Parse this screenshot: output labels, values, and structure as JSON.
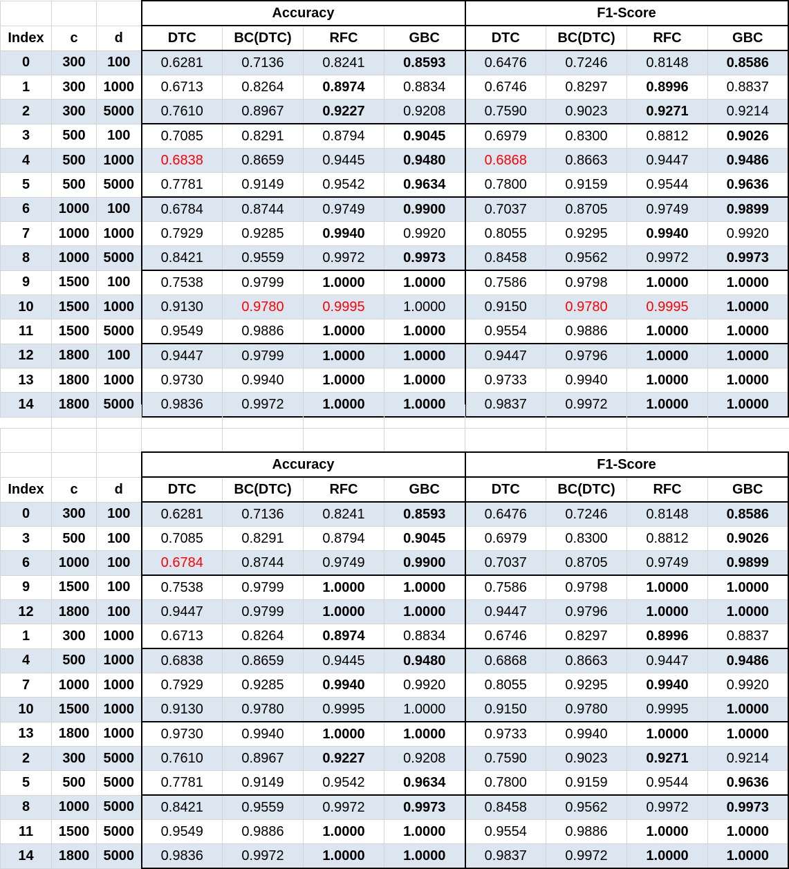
{
  "tables": [
    {
      "group_headers": [
        "Accuracy",
        "F1-Score"
      ],
      "column_headers": [
        "Index",
        "c",
        "d",
        "DTC",
        "BC(DTC)",
        "RFC",
        "GBC",
        "DTC",
        "BC(DTC)",
        "RFC",
        "GBC"
      ],
      "rows": [
        {
          "index": "0",
          "c": "300",
          "d": "100",
          "values": [
            "0.6281",
            "0.7136",
            "0.8241",
            "0.8593",
            "0.6476",
            "0.7246",
            "0.8148",
            "0.8586"
          ],
          "bold": [
            3,
            7
          ],
          "red": []
        },
        {
          "index": "1",
          "c": "300",
          "d": "1000",
          "values": [
            "0.6713",
            "0.8264",
            "0.8974",
            "0.8834",
            "0.6746",
            "0.8297",
            "0.8996",
            "0.8837"
          ],
          "bold": [
            2,
            6
          ],
          "red": []
        },
        {
          "index": "2",
          "c": "300",
          "d": "5000",
          "values": [
            "0.7610",
            "0.8967",
            "0.9227",
            "0.9208",
            "0.7590",
            "0.9023",
            "0.9271",
            "0.9214"
          ],
          "bold": [
            2,
            6
          ],
          "red": []
        },
        {
          "index": "3",
          "c": "500",
          "d": "100",
          "values": [
            "0.7085",
            "0.8291",
            "0.8794",
            "0.9045",
            "0.6979",
            "0.8300",
            "0.8812",
            "0.9026"
          ],
          "bold": [
            3,
            7
          ],
          "red": []
        },
        {
          "index": "4",
          "c": "500",
          "d": "1000",
          "values": [
            "0.6838",
            "0.8659",
            "0.9445",
            "0.9480",
            "0.6868",
            "0.8663",
            "0.9447",
            "0.9486"
          ],
          "bold": [
            3,
            7
          ],
          "red": [
            0,
            4
          ]
        },
        {
          "index": "5",
          "c": "500",
          "d": "5000",
          "values": [
            "0.7781",
            "0.9149",
            "0.9542",
            "0.9634",
            "0.7800",
            "0.9159",
            "0.9544",
            "0.9636"
          ],
          "bold": [
            3,
            7
          ],
          "red": []
        },
        {
          "index": "6",
          "c": "1000",
          "d": "100",
          "values": [
            "0.6784",
            "0.8744",
            "0.9749",
            "0.9900",
            "0.7037",
            "0.8705",
            "0.9749",
            "0.9899"
          ],
          "bold": [
            3,
            7
          ],
          "red": []
        },
        {
          "index": "7",
          "c": "1000",
          "d": "1000",
          "values": [
            "0.7929",
            "0.9285",
            "0.9940",
            "0.9920",
            "0.8055",
            "0.9295",
            "0.9940",
            "0.9920"
          ],
          "bold": [
            2,
            6
          ],
          "red": []
        },
        {
          "index": "8",
          "c": "1000",
          "d": "5000",
          "values": [
            "0.8421",
            "0.9559",
            "0.9972",
            "0.9973",
            "0.8458",
            "0.9562",
            "0.9972",
            "0.9973"
          ],
          "bold": [
            3,
            7
          ],
          "red": []
        },
        {
          "index": "9",
          "c": "1500",
          "d": "100",
          "values": [
            "0.7538",
            "0.9799",
            "1.0000",
            "1.0000",
            "0.7586",
            "0.9798",
            "1.0000",
            "1.0000"
          ],
          "bold": [
            2,
            3,
            6,
            7
          ],
          "red": []
        },
        {
          "index": "10",
          "c": "1500",
          "d": "1000",
          "values": [
            "0.9130",
            "0.9780",
            "0.9995",
            "1.0000",
            "0.9150",
            "0.9780",
            "0.9995",
            "1.0000"
          ],
          "bold": [
            7
          ],
          "red": [
            1,
            2,
            5,
            6
          ]
        },
        {
          "index": "11",
          "c": "1500",
          "d": "5000",
          "values": [
            "0.9549",
            "0.9886",
            "1.0000",
            "1.0000",
            "0.9554",
            "0.9886",
            "1.0000",
            "1.0000"
          ],
          "bold": [
            2,
            3,
            6,
            7
          ],
          "red": []
        },
        {
          "index": "12",
          "c": "1800",
          "d": "100",
          "values": [
            "0.9447",
            "0.9799",
            "1.0000",
            "1.0000",
            "0.9447",
            "0.9796",
            "1.0000",
            "1.0000"
          ],
          "bold": [
            2,
            3,
            6,
            7
          ],
          "red": []
        },
        {
          "index": "13",
          "c": "1800",
          "d": "1000",
          "values": [
            "0.9730",
            "0.9940",
            "1.0000",
            "1.0000",
            "0.9733",
            "0.9940",
            "1.0000",
            "1.0000"
          ],
          "bold": [
            2,
            3,
            6,
            7
          ],
          "red": []
        },
        {
          "index": "14",
          "c": "1800",
          "d": "5000",
          "values": [
            "0.9836",
            "0.9972",
            "1.0000",
            "1.0000",
            "0.9837",
            "0.9972",
            "1.0000",
            "1.0000"
          ],
          "bold": [
            2,
            3,
            6,
            7
          ],
          "red": []
        }
      ]
    },
    {
      "group_headers": [
        "Accuracy",
        "F1-Score"
      ],
      "column_headers": [
        "Index",
        "c",
        "d",
        "DTC",
        "BC(DTC)",
        "RFC",
        "GBC",
        "DTC",
        "BC(DTC)",
        "RFC",
        "GBC"
      ],
      "rows": [
        {
          "index": "0",
          "c": "300",
          "d": "100",
          "values": [
            "0.6281",
            "0.7136",
            "0.8241",
            "0.8593",
            "0.6476",
            "0.7246",
            "0.8148",
            "0.8586"
          ],
          "bold": [
            3,
            7
          ],
          "red": []
        },
        {
          "index": "3",
          "c": "500",
          "d": "100",
          "values": [
            "0.7085",
            "0.8291",
            "0.8794",
            "0.9045",
            "0.6979",
            "0.8300",
            "0.8812",
            "0.9026"
          ],
          "bold": [
            3,
            7
          ],
          "red": []
        },
        {
          "index": "6",
          "c": "1000",
          "d": "100",
          "values": [
            "0.6784",
            "0.8744",
            "0.9749",
            "0.9900",
            "0.7037",
            "0.8705",
            "0.9749",
            "0.9899"
          ],
          "bold": [
            3,
            7
          ],
          "red": [
            0
          ]
        },
        {
          "index": "9",
          "c": "1500",
          "d": "100",
          "values": [
            "0.7538",
            "0.9799",
            "1.0000",
            "1.0000",
            "0.7586",
            "0.9798",
            "1.0000",
            "1.0000"
          ],
          "bold": [
            2,
            3,
            6,
            7
          ],
          "red": []
        },
        {
          "index": "12",
          "c": "1800",
          "d": "100",
          "values": [
            "0.9447",
            "0.9799",
            "1.0000",
            "1.0000",
            "0.9447",
            "0.9796",
            "1.0000",
            "1.0000"
          ],
          "bold": [
            2,
            3,
            6,
            7
          ],
          "red": []
        },
        {
          "index": "1",
          "c": "300",
          "d": "1000",
          "values": [
            "0.6713",
            "0.8264",
            "0.8974",
            "0.8834",
            "0.6746",
            "0.8297",
            "0.8996",
            "0.8837"
          ],
          "bold": [
            2,
            6
          ],
          "red": []
        },
        {
          "index": "4",
          "c": "500",
          "d": "1000",
          "values": [
            "0.6838",
            "0.8659",
            "0.9445",
            "0.9480",
            "0.6868",
            "0.8663",
            "0.9447",
            "0.9486"
          ],
          "bold": [
            3,
            7
          ],
          "red": []
        },
        {
          "index": "7",
          "c": "1000",
          "d": "1000",
          "values": [
            "0.7929",
            "0.9285",
            "0.9940",
            "0.9920",
            "0.8055",
            "0.9295",
            "0.9940",
            "0.9920"
          ],
          "bold": [
            2,
            6
          ],
          "red": []
        },
        {
          "index": "10",
          "c": "1500",
          "d": "1000",
          "values": [
            "0.9130",
            "0.9780",
            "0.9995",
            "1.0000",
            "0.9150",
            "0.9780",
            "0.9995",
            "1.0000"
          ],
          "bold": [
            7
          ],
          "red": []
        },
        {
          "index": "13",
          "c": "1800",
          "d": "1000",
          "values": [
            "0.9730",
            "0.9940",
            "1.0000",
            "1.0000",
            "0.9733",
            "0.9940",
            "1.0000",
            "1.0000"
          ],
          "bold": [
            2,
            3,
            6,
            7
          ],
          "red": []
        },
        {
          "index": "2",
          "c": "300",
          "d": "5000",
          "values": [
            "0.7610",
            "0.8967",
            "0.9227",
            "0.9208",
            "0.7590",
            "0.9023",
            "0.9271",
            "0.9214"
          ],
          "bold": [
            2,
            6
          ],
          "red": []
        },
        {
          "index": "5",
          "c": "500",
          "d": "5000",
          "values": [
            "0.7781",
            "0.9149",
            "0.9542",
            "0.9634",
            "0.7800",
            "0.9159",
            "0.9544",
            "0.9636"
          ],
          "bold": [
            3,
            7
          ],
          "red": []
        },
        {
          "index": "8",
          "c": "1000",
          "d": "5000",
          "values": [
            "0.8421",
            "0.9559",
            "0.9972",
            "0.9973",
            "0.8458",
            "0.9562",
            "0.9972",
            "0.9973"
          ],
          "bold": [
            3,
            7
          ],
          "red": []
        },
        {
          "index": "11",
          "c": "1500",
          "d": "5000",
          "values": [
            "0.9549",
            "0.9886",
            "1.0000",
            "1.0000",
            "0.9554",
            "0.9886",
            "1.0000",
            "1.0000"
          ],
          "bold": [
            2,
            3,
            6,
            7
          ],
          "red": []
        },
        {
          "index": "14",
          "c": "1800",
          "d": "5000",
          "values": [
            "0.9836",
            "0.9972",
            "1.0000",
            "1.0000",
            "0.9837",
            "0.9972",
            "1.0000",
            "1.0000"
          ],
          "bold": [
            2,
            3,
            6,
            7
          ],
          "red": []
        }
      ]
    }
  ]
}
